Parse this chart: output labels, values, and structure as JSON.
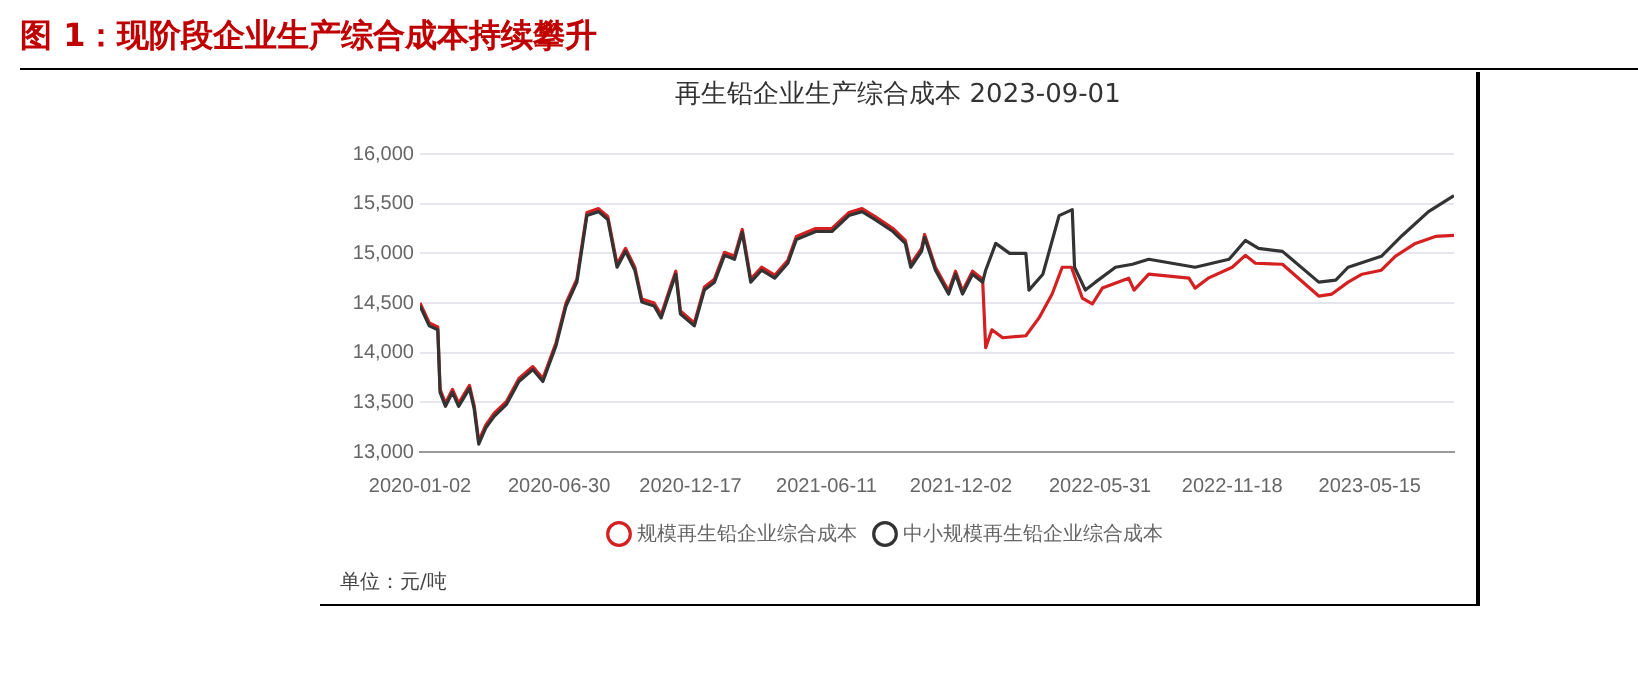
{
  "chart_data": {
    "type": "line",
    "title": "图 1：现阶段企业生产综合成本持续攀升",
    "subtitle": "再生铅企业生产综合成本 2023-09-01",
    "annotations": [
      "单位：元/吨"
    ],
    "xlim": [
      "2020-01-02",
      "2023-09-01"
    ],
    "xticks": [
      "2020-01-02",
      "2020-06-30",
      "2020-12-17",
      "2021-06-11",
      "2021-12-02",
      "2022-05-31",
      "2022-11-18",
      "2023-05-15"
    ],
    "ylim": [
      13000,
      16000
    ],
    "yticks": [
      {
        "value": 13000,
        "label": "13,000"
      },
      {
        "value": 13500,
        "label": "13,500"
      },
      {
        "value": 14000,
        "label": "14,000"
      },
      {
        "value": 14500,
        "label": "14,500"
      },
      {
        "value": 15000,
        "label": "15,000"
      },
      {
        "value": 15500,
        "label": "15,500"
      },
      {
        "value": 16000,
        "label": "16,000"
      }
    ],
    "grid": "y",
    "legend": "bottom",
    "marker": "none",
    "line_style": "solid",
    "series": [
      {
        "name": "规模再生铅企业综合成本",
        "color": "#d42020",
        "x": [
          "2020-01-02",
          "2020-01-14",
          "2020-01-25",
          "2020-01-28",
          "2020-02-04",
          "2020-02-13",
          "2020-02-21",
          "2020-03-06",
          "2020-03-12",
          "2020-03-18",
          "2020-03-27",
          "2020-04-07",
          "2020-04-23",
          "2020-05-09",
          "2020-05-27",
          "2020-06-09",
          "2020-06-26",
          "2020-07-09",
          "2020-07-23",
          "2020-08-05",
          "2020-08-20",
          "2020-09-01",
          "2020-09-13",
          "2020-09-24",
          "2020-10-06",
          "2020-10-15",
          "2020-10-31",
          "2020-11-09",
          "2020-11-21",
          "2020-11-28",
          "2020-12-04",
          "2020-12-22",
          "2021-01-04",
          "2021-01-17",
          "2021-01-30",
          "2021-02-12",
          "2021-02-22",
          "2021-03-05",
          "2021-03-19",
          "2021-04-05",
          "2021-04-22",
          "2021-05-03",
          "2021-05-28",
          "2021-06-18",
          "2021-07-10",
          "2021-07-27",
          "2021-08-13",
          "2021-09-05",
          "2021-09-21",
          "2021-09-28",
          "2021-10-12",
          "2021-10-16",
          "2021-10-30",
          "2021-11-16",
          "2021-11-25",
          "2021-12-04",
          "2021-12-17",
          "2021-12-30",
          "2022-01-03",
          "2022-01-11",
          "2022-01-25",
          "2022-02-24",
          "2022-03-13",
          "2022-03-30",
          "2022-04-12",
          "2022-04-24",
          "2022-05-08",
          "2022-05-21",
          "2022-06-03",
          "2022-07-07",
          "2022-07-14",
          "2022-08-02",
          "2022-09-23",
          "2022-10-01",
          "2022-10-18",
          "2022-11-18",
          "2022-12-05",
          "2022-12-18",
          "2023-01-22",
          "2023-03-10",
          "2023-03-27",
          "2023-04-17",
          "2023-05-05",
          "2023-05-30",
          "2023-06-17",
          "2023-07-13",
          "2023-08-08",
          "2023-09-01"
        ],
        "values": [
          14500,
          14300,
          14260,
          13630,
          13490,
          13630,
          13490,
          13670,
          13470,
          13110,
          13270,
          13390,
          13510,
          13740,
          13860,
          13740,
          14100,
          14500,
          14740,
          15410,
          15450,
          15370,
          14890,
          15050,
          14860,
          14540,
          14500,
          14380,
          14660,
          14820,
          14420,
          14300,
          14660,
          14740,
          15010,
          14970,
          15240,
          14740,
          14860,
          14780,
          14930,
          15170,
          15250,
          15250,
          15410,
          15450,
          15370,
          15250,
          15130,
          14890,
          15050,
          15190,
          14860,
          14620,
          14820,
          14620,
          14820,
          14740,
          14050,
          14230,
          14150,
          14170,
          14350,
          14590,
          14860,
          14860,
          14550,
          14490,
          14650,
          14750,
          14630,
          14790,
          14750,
          14650,
          14750,
          14860,
          14980,
          14900,
          14890,
          14570,
          14590,
          14710,
          14790,
          14830,
          14970,
          15100,
          15170,
          15180
        ]
      },
      {
        "name": "中小规模再生铅企业综合成本",
        "color": "#333333",
        "x": [
          "2020-01-02",
          "2020-01-14",
          "2020-01-25",
          "2020-01-28",
          "2020-02-04",
          "2020-02-13",
          "2020-02-21",
          "2020-03-06",
          "2020-03-12",
          "2020-03-18",
          "2020-03-27",
          "2020-04-07",
          "2020-04-23",
          "2020-05-09",
          "2020-05-27",
          "2020-06-09",
          "2020-06-26",
          "2020-07-09",
          "2020-07-23",
          "2020-08-05",
          "2020-08-20",
          "2020-09-01",
          "2020-09-13",
          "2020-09-24",
          "2020-10-06",
          "2020-10-15",
          "2020-10-31",
          "2020-11-09",
          "2020-11-21",
          "2020-11-28",
          "2020-12-04",
          "2020-12-22",
          "2021-01-04",
          "2021-01-17",
          "2021-01-30",
          "2021-02-12",
          "2021-02-22",
          "2021-03-05",
          "2021-03-19",
          "2021-04-05",
          "2021-04-22",
          "2021-05-03",
          "2021-05-28",
          "2021-06-18",
          "2021-07-10",
          "2021-07-27",
          "2021-08-13",
          "2021-09-05",
          "2021-09-21",
          "2021-09-28",
          "2021-10-12",
          "2021-10-16",
          "2021-10-30",
          "2021-11-16",
          "2021-11-25",
          "2021-12-04",
          "2021-12-17",
          "2021-12-30",
          "2022-01-03",
          "2022-01-16",
          "2022-02-03",
          "2022-02-24",
          "2022-02-28",
          "2022-03-18",
          "2022-04-08",
          "2022-04-25",
          "2022-04-28",
          "2022-05-12",
          "2022-05-25",
          "2022-06-20",
          "2022-07-12",
          "2022-08-02",
          "2022-10-01",
          "2022-11-14",
          "2022-12-05",
          "2022-12-22",
          "2023-01-22",
          "2023-03-10",
          "2023-04-01",
          "2023-04-17",
          "2023-05-30",
          "2023-06-26",
          "2023-07-30",
          "2023-09-01"
        ],
        "values": [
          14470,
          14270,
          14230,
          13600,
          13460,
          13600,
          13460,
          13640,
          13440,
          13080,
          13240,
          13360,
          13480,
          13710,
          13830,
          13710,
          14070,
          14470,
          14710,
          15380,
          15420,
          15340,
          14860,
          15020,
          14830,
          14510,
          14470,
          14350,
          14630,
          14790,
          14390,
          14270,
          14630,
          14710,
          14980,
          14940,
          15210,
          14710,
          14830,
          14750,
          14900,
          15140,
          15220,
          15220,
          15380,
          15420,
          15340,
          15220,
          15100,
          14860,
          15020,
          15160,
          14830,
          14590,
          14790,
          14590,
          14790,
          14710,
          14830,
          15100,
          15000,
          15000,
          14630,
          14790,
          15380,
          15440,
          14860,
          14630,
          14710,
          14860,
          14890,
          14940,
          14860,
          14940,
          15130,
          15050,
          15020,
          14710,
          14730,
          14860,
          14970,
          15180,
          15420,
          15580
        ]
      }
    ]
  }
}
